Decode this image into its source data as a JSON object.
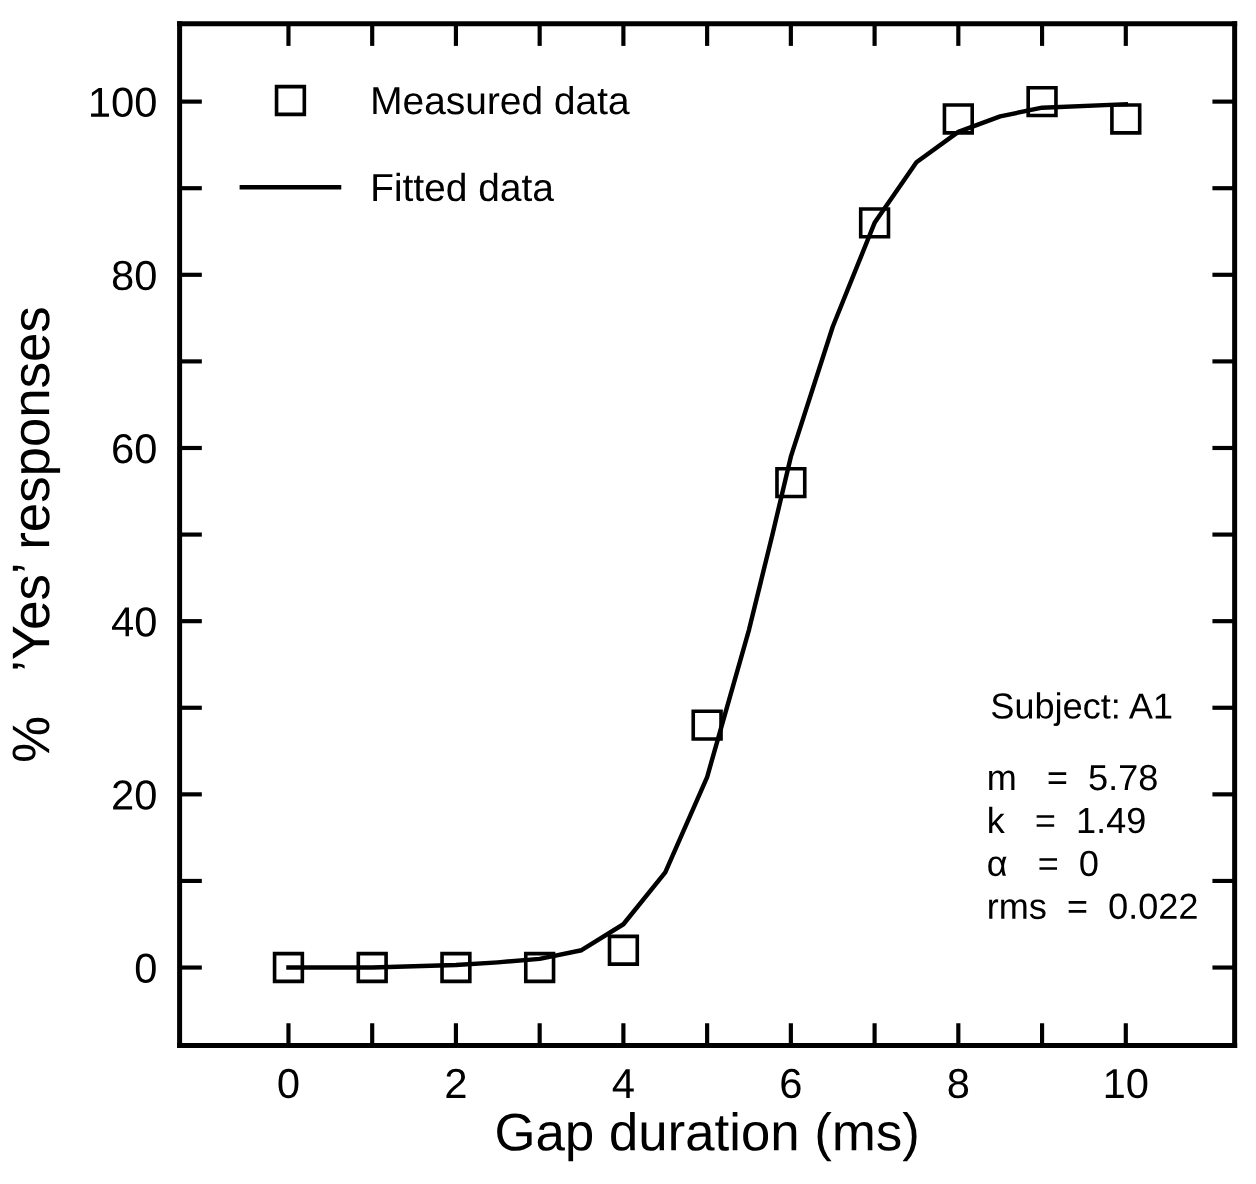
{
  "chart_data": {
    "type": "scatter",
    "xlabel": "Gap duration (ms)",
    "ylabel": "%   ’Yes’ responses",
    "xlim": [
      -1.3,
      11.3
    ],
    "ylim": [
      -9,
      109
    ],
    "xticks": [
      0,
      {
        "value": 1,
        "label": null
      },
      2,
      {
        "value": 3,
        "label": null
      },
      4,
      {
        "value": 5,
        "label": null
      },
      6,
      {
        "value": 7,
        "label": null
      },
      8,
      {
        "value": 9,
        "label": null
      },
      10
    ],
    "yticks": [
      0,
      {
        "value": 10,
        "label": null
      },
      20,
      {
        "value": 30,
        "label": null
      },
      40,
      {
        "value": 50,
        "label": null
      },
      60,
      {
        "value": 70,
        "label": null
      },
      80,
      {
        "value": 90,
        "label": null
      },
      100
    ],
    "legend": "top left",
    "grid": false,
    "series": [
      {
        "name": "Measured data",
        "marker": "square",
        "color": "#000000",
        "x": [
          0,
          1,
          2,
          3,
          4,
          5,
          6,
          7,
          8,
          9,
          10
        ],
        "values": [
          0,
          0,
          0,
          0,
          2,
          28,
          56,
          86,
          98,
          100,
          98
        ]
      },
      {
        "name": "Fitted data",
        "type": "line",
        "marker": "none",
        "line_style": "solid",
        "color": "#000000",
        "x": [
          0,
          1,
          2,
          2.5,
          3,
          3.5,
          4,
          4.5,
          5,
          5.5,
          5.78,
          6,
          6.5,
          7,
          7.5,
          8,
          8.5,
          9,
          10
        ],
        "values": [
          0,
          0,
          0.3,
          0.6,
          1,
          2,
          5,
          11,
          22,
          39,
          50,
          59,
          74,
          86,
          93,
          96.5,
          98.3,
          99.3,
          99.7
        ]
      }
    ],
    "annotations": [
      "Subject: A1",
      "m   =  5.78",
      "k   =  1.49",
      "α   =  0",
      "rms  =  0.022"
    ]
  }
}
